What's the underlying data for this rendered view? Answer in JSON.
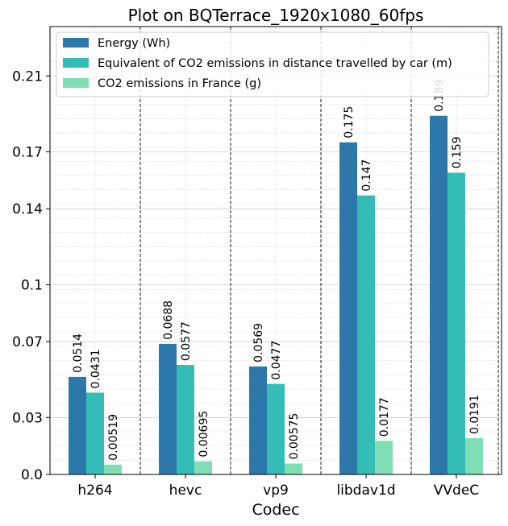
{
  "chart_data": {
    "type": "bar",
    "title": "Plot on BQTerrace_1920x1080_60fps",
    "xlabel": "Codec",
    "ylabel": "",
    "categories": [
      "h264",
      "hevc",
      "vp9",
      "libdav1d",
      "VVdeC"
    ],
    "series": [
      {
        "name": "Energy (Wh)",
        "values": [
          0.0514,
          0.0688,
          0.0569,
          0.175,
          0.189
        ],
        "labels": [
          "0.0514",
          "0.0688",
          "0.0569",
          "0.175",
          "0.189"
        ],
        "color": "#2c78aa"
      },
      {
        "name": "Equivalent of CO2 emissions in distance travelled by car (m)",
        "values": [
          0.0431,
          0.0577,
          0.0477,
          0.147,
          0.159
        ],
        "labels": [
          "0.0431",
          "0.0577",
          "0.0477",
          "0.147",
          "0.159"
        ],
        "color": "#34bdb6"
      },
      {
        "name": "CO2 emissions in France (g)",
        "values": [
          0.00519,
          0.00695,
          0.00575,
          0.0177,
          0.0191
        ],
        "labels": [
          "0.00519",
          "0.00695",
          "0.00575",
          "0.0177",
          "0.0191"
        ],
        "color": "#7fdeb6"
      }
    ],
    "yticks": [
      "0.0",
      "0.03",
      "0.07",
      "0.1",
      "0.14",
      "0.17",
      "0.21"
    ],
    "ylim": [
      0,
      0.236
    ],
    "grid": true,
    "legend_position": "top-left"
  }
}
